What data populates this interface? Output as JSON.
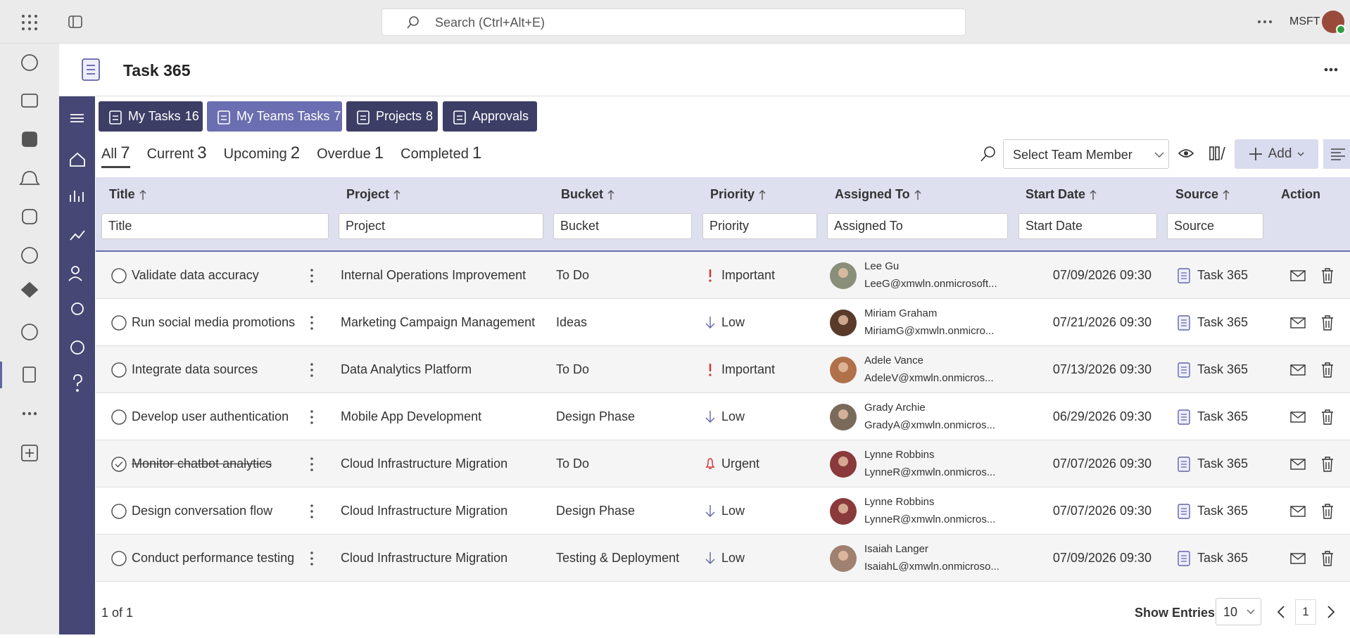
{
  "topbar": {
    "search_placeholder": "Search (Ctrl+Alt+E)",
    "org": "MSFT"
  },
  "app": {
    "title": "Task 365"
  },
  "tabs": [
    {
      "label": "My Tasks",
      "count": 16,
      "active": false
    },
    {
      "label": "My Teams Tasks",
      "count": 7,
      "active": true
    },
    {
      "label": "Projects",
      "count": 8,
      "active": false
    },
    {
      "label": "Approvals",
      "active": false
    }
  ],
  "filters": [
    {
      "label": "All",
      "count": 7,
      "active": true
    },
    {
      "label": "Current",
      "count": 3,
      "active": false
    },
    {
      "label": "Upcoming",
      "count": 2,
      "active": false
    },
    {
      "label": "Overdue",
      "count": 1,
      "active": false
    },
    {
      "label": "Completed",
      "count": 1,
      "active": false
    }
  ],
  "toolbar": {
    "team_member_placeholder": "Select Team Member",
    "add": "Add"
  },
  "table": {
    "columns": [
      "Title",
      "Project",
      "Bucket",
      "Priority",
      "Assigned To",
      "Start Date",
      "Source",
      "Action"
    ],
    "filter_placeholders": [
      "Title",
      "Project",
      "Bucket",
      "Priority",
      "Assigned To",
      "Start Date",
      "Source"
    ],
    "rows": [
      {
        "title": "Validate data accuracy",
        "completed": false,
        "project": "Internal Operations Improvement",
        "bucket": "To Do",
        "priority": "Important",
        "priority_icon": "exclamation",
        "assignee": "Lee Gu",
        "email": "LeeG@xmwln.onmicrosoft...",
        "avatar_color": "#8a8f7a",
        "start_date": "07/09/2026 09:30",
        "source": "Task 365"
      },
      {
        "title": "Run social media promotions",
        "completed": false,
        "project": "Marketing Campaign Management",
        "bucket": "Ideas",
        "priority": "Low",
        "priority_icon": "arrow-down",
        "assignee": "Miriam Graham",
        "email": "MiriamG@xmwln.onmicro...",
        "avatar_color": "#5a3a2a",
        "start_date": "07/21/2026 09:30",
        "source": "Task 365"
      },
      {
        "title": "Integrate data sources",
        "completed": false,
        "project": "Data Analytics Platform",
        "bucket": "To Do",
        "priority": "Important",
        "priority_icon": "exclamation",
        "assignee": "Adele Vance",
        "email": "AdeleV@xmwln.onmicros...",
        "avatar_color": "#b0704a",
        "start_date": "07/13/2026 09:30",
        "source": "Task 365"
      },
      {
        "title": "Develop user authentication",
        "completed": false,
        "project": "Mobile App Development",
        "bucket": "Design Phase",
        "priority": "Low",
        "priority_icon": "arrow-down",
        "assignee": "Grady Archie",
        "email": "GradyA@xmwln.onmicros...",
        "avatar_color": "#7a6a5a",
        "start_date": "06/29/2026 09:30",
        "source": "Task 365"
      },
      {
        "title": "Monitor chatbot analytics",
        "completed": true,
        "project": "Cloud Infrastructure Migration",
        "bucket": "To Do",
        "priority": "Urgent",
        "priority_icon": "bell",
        "assignee": "Lynne Robbins",
        "email": "LynneR@xmwln.onmicros...",
        "avatar_color": "#8a3a3a",
        "start_date": "07/07/2026 09:30",
        "source": "Task 365"
      },
      {
        "title": "Design conversation flow",
        "completed": false,
        "project": "Cloud Infrastructure Migration",
        "bucket": "Design Phase",
        "priority": "Low",
        "priority_icon": "arrow-down",
        "assignee": "Lynne Robbins",
        "email": "LynneR@xmwln.onmicros...",
        "avatar_color": "#8a3a3a",
        "start_date": "07/07/2026 09:30",
        "source": "Task 365"
      },
      {
        "title": "Conduct performance testing",
        "completed": false,
        "project": "Cloud Infrastructure Migration",
        "bucket": "Testing & Deployment",
        "priority": "Low",
        "priority_icon": "arrow-down",
        "assignee": "Isaiah Langer",
        "email": "IsaiahL@xmwln.onmicroso...",
        "avatar_color": "#a08070",
        "start_date": "07/09/2026 09:30",
        "source": "Task 365"
      }
    ]
  },
  "footer": {
    "page_info": "1 of 1",
    "show_entries": "Show Entries",
    "entries": 10,
    "page": 1
  }
}
